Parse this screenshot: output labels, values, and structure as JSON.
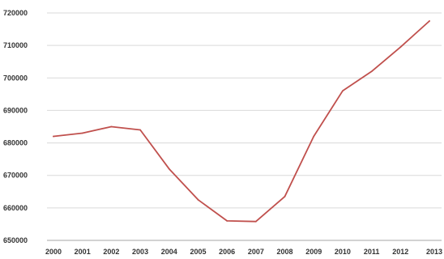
{
  "chart_data": {
    "type": "line",
    "title": "",
    "xlabel": "",
    "ylabel": "",
    "x": [
      "2000",
      "2001",
      "2002",
      "2003",
      "2004",
      "2005",
      "2006",
      "2007",
      "2008",
      "2009",
      "2010",
      "2011",
      "2012",
      "2013"
    ],
    "series": [
      {
        "values": [
          682000,
          683000,
          685000,
          684000,
          672000,
          662500,
          656000,
          655800,
          663500,
          682000,
          696000,
          702000,
          709500,
          717500
        ]
      }
    ],
    "ylim": [
      650000,
      720000
    ],
    "yticks": [
      650000,
      660000,
      670000,
      680000,
      690000,
      700000,
      710000,
      720000
    ],
    "ytick_labels": [
      "650000",
      "660000",
      "670000",
      "680000",
      "690000",
      "700000",
      "710000",
      "720000"
    ],
    "grid": true,
    "legend": "none",
    "line_color": "#c0504d"
  }
}
